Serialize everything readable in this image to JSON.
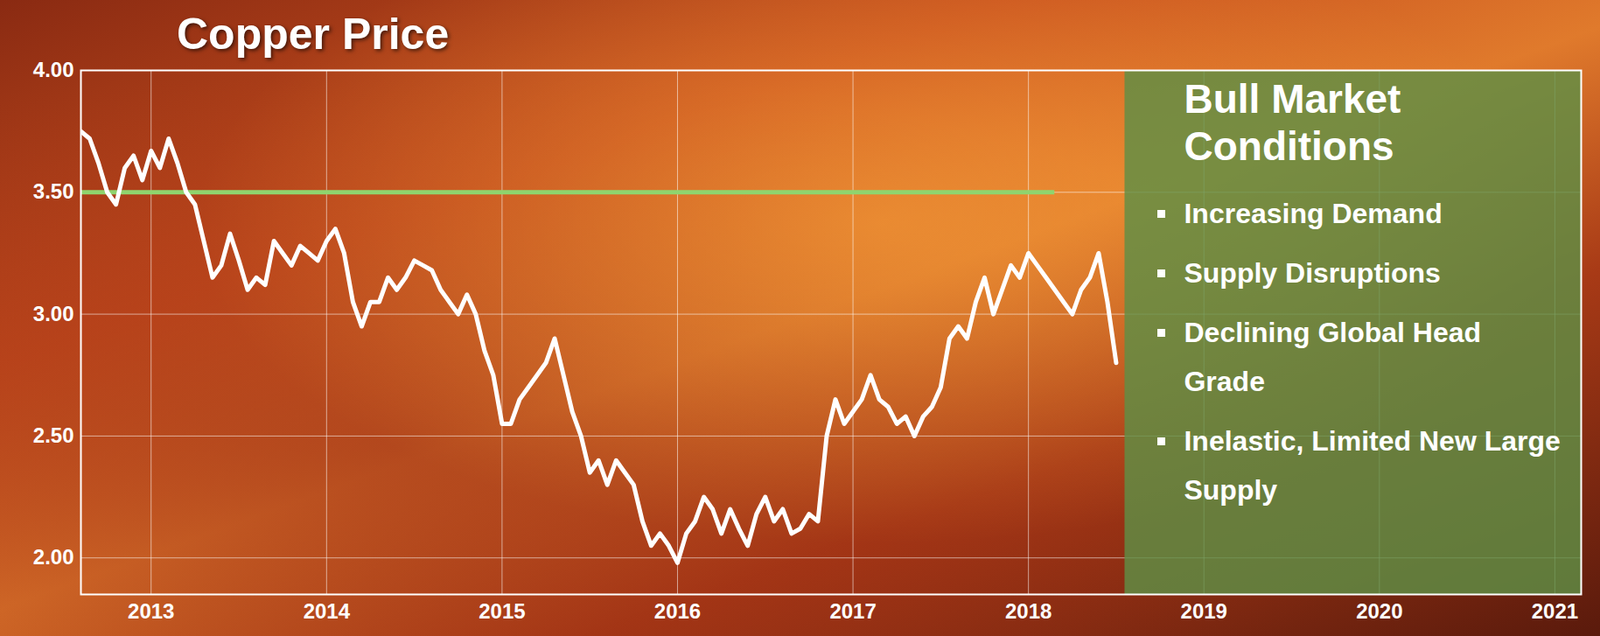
{
  "chart_data": {
    "type": "line",
    "title": "Copper Price",
    "color": "#ffffff",
    "grid": true,
    "xlim": [
      2012.6,
      2021.15
    ],
    "xticks": [
      2013,
      2014,
      2015,
      2016,
      2017,
      2018,
      2019,
      2020,
      2021
    ],
    "ylim": [
      1.85,
      4.0
    ],
    "yticks": [
      {
        "value": 2,
        "label": "2.00"
      },
      {
        "value": 2.5,
        "label": "2.50"
      },
      {
        "value": 3,
        "label": "3.00"
      },
      {
        "value": 3.5,
        "label": "3.50"
      },
      {
        "value": 4,
        "label": "4.00"
      }
    ],
    "x": [
      2012.6,
      2012.65,
      2012.7,
      2012.75,
      2012.8,
      2012.85,
      2012.9,
      2012.95,
      2013,
      2013.05,
      2013.1,
      2013.15,
      2013.2,
      2013.25,
      2013.3,
      2013.35,
      2013.4,
      2013.45,
      2013.5,
      2013.55,
      2013.6,
      2013.65,
      2013.7,
      2013.75,
      2013.8,
      2013.85,
      2013.9,
      2013.95,
      2014,
      2014.05,
      2014.1,
      2014.15,
      2014.2,
      2014.25,
      2014.3,
      2014.35,
      2014.4,
      2014.45,
      2014.5,
      2014.55,
      2014.6,
      2014.65,
      2014.7,
      2014.75,
      2014.8,
      2014.85,
      2014.9,
      2014.95,
      2015,
      2015.05,
      2015.1,
      2015.15,
      2015.2,
      2015.25,
      2015.3,
      2015.35,
      2015.4,
      2015.45,
      2015.5,
      2015.55,
      2015.6,
      2015.65,
      2015.7,
      2015.75,
      2015.8,
      2015.85,
      2015.9,
      2015.95,
      2016,
      2016.05,
      2016.1,
      2016.15,
      2016.2,
      2016.25,
      2016.3,
      2016.35,
      2016.4,
      2016.45,
      2016.5,
      2016.55,
      2016.6,
      2016.65,
      2016.7,
      2016.75,
      2016.8,
      2016.85,
      2016.9,
      2016.95,
      2017,
      2017.05,
      2017.1,
      2017.15,
      2017.2,
      2017.25,
      2017.3,
      2017.35,
      2017.4,
      2017.45,
      2017.5,
      2017.55,
      2017.6,
      2017.65,
      2017.7,
      2017.75,
      2017.8,
      2017.85,
      2017.9,
      2017.95,
      2018,
      2018.05,
      2018.1,
      2018.15,
      2018.2,
      2018.25,
      2018.3,
      2018.35,
      2018.4,
      2018.45,
      2018.5
    ],
    "values": [
      3.75,
      3.72,
      3.62,
      3.5,
      3.45,
      3.6,
      3.65,
      3.55,
      3.67,
      3.6,
      3.72,
      3.62,
      3.5,
      3.45,
      3.3,
      3.15,
      3.2,
      3.33,
      3.22,
      3.1,
      3.15,
      3.12,
      3.3,
      3.25,
      3.2,
      3.28,
      3.25,
      3.22,
      3.3,
      3.35,
      3.25,
      3.05,
      2.95,
      3.05,
      3.05,
      3.15,
      3.1,
      3.15,
      3.22,
      3.2,
      3.18,
      3.1,
      3.05,
      3.0,
      3.08,
      3.0,
      2.85,
      2.75,
      2.55,
      2.55,
      2.65,
      2.7,
      2.75,
      2.8,
      2.9,
      2.75,
      2.6,
      2.5,
      2.35,
      2.4,
      2.3,
      2.4,
      2.35,
      2.3,
      2.15,
      2.05,
      2.1,
      2.05,
      1.98,
      2.1,
      2.15,
      2.25,
      2.2,
      2.1,
      2.2,
      2.12,
      2.05,
      2.18,
      2.25,
      2.15,
      2.2,
      2.1,
      2.12,
      2.18,
      2.15,
      2.5,
      2.65,
      2.55,
      2.6,
      2.65,
      2.75,
      2.65,
      2.62,
      2.55,
      2.58,
      2.5,
      2.58,
      2.62,
      2.7,
      2.9,
      2.95,
      2.9,
      3.05,
      3.15,
      3.0,
      3.1,
      3.2,
      3.15,
      3.25,
      3.2,
      3.15,
      3.1,
      3.05,
      3.0,
      3.1,
      3.15,
      3.25,
      3.05,
      2.8
    ],
    "reference_lines": [
      {
        "y": 3.5,
        "x1": 2012.6,
        "x2": 2018.15,
        "color": "#8fd46e"
      }
    ],
    "panel": {
      "title": "Bull Market Conditions",
      "items": [
        "Increasing Demand",
        "Supply Disruptions",
        "Declining Global Head Grade",
        "Inelastic, Limited New Large Supply"
      ],
      "x_start": 2018.55,
      "color": "#5f8f45"
    }
  }
}
